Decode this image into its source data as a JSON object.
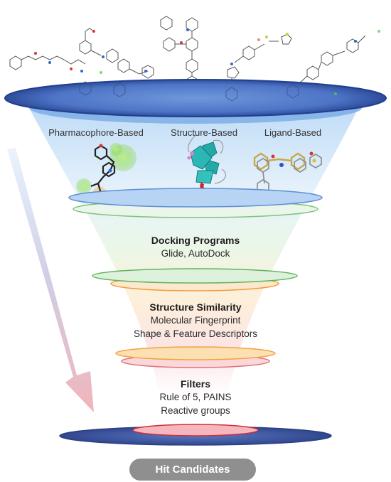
{
  "methods": {
    "pharmacophore": "Pharmacophore-Based",
    "structure": "Structure-Based",
    "ligand": "Ligand-Based"
  },
  "stages": [
    {
      "title": "Docking Programs",
      "lines": [
        "Glide, AutoDock"
      ]
    },
    {
      "title": "Structure Similarity",
      "lines": [
        "Molecular Fingerprint",
        "Shape & Feature Descriptors"
      ]
    },
    {
      "title": "Filters",
      "lines": [
        "Rule of 5, PAINS",
        "Reactive groups"
      ]
    }
  ],
  "result": {
    "label": "Hit Candidates"
  },
  "colors": {
    "top_disc": "#3f64b4",
    "blue_ring": "#9dc4ea",
    "green_ring": "#a8dca5",
    "orange_ring": "#f6c27a",
    "red_ring": "#f1a0a5",
    "bottom_disc": "#4560a8",
    "badge": "#8f8f8f"
  }
}
